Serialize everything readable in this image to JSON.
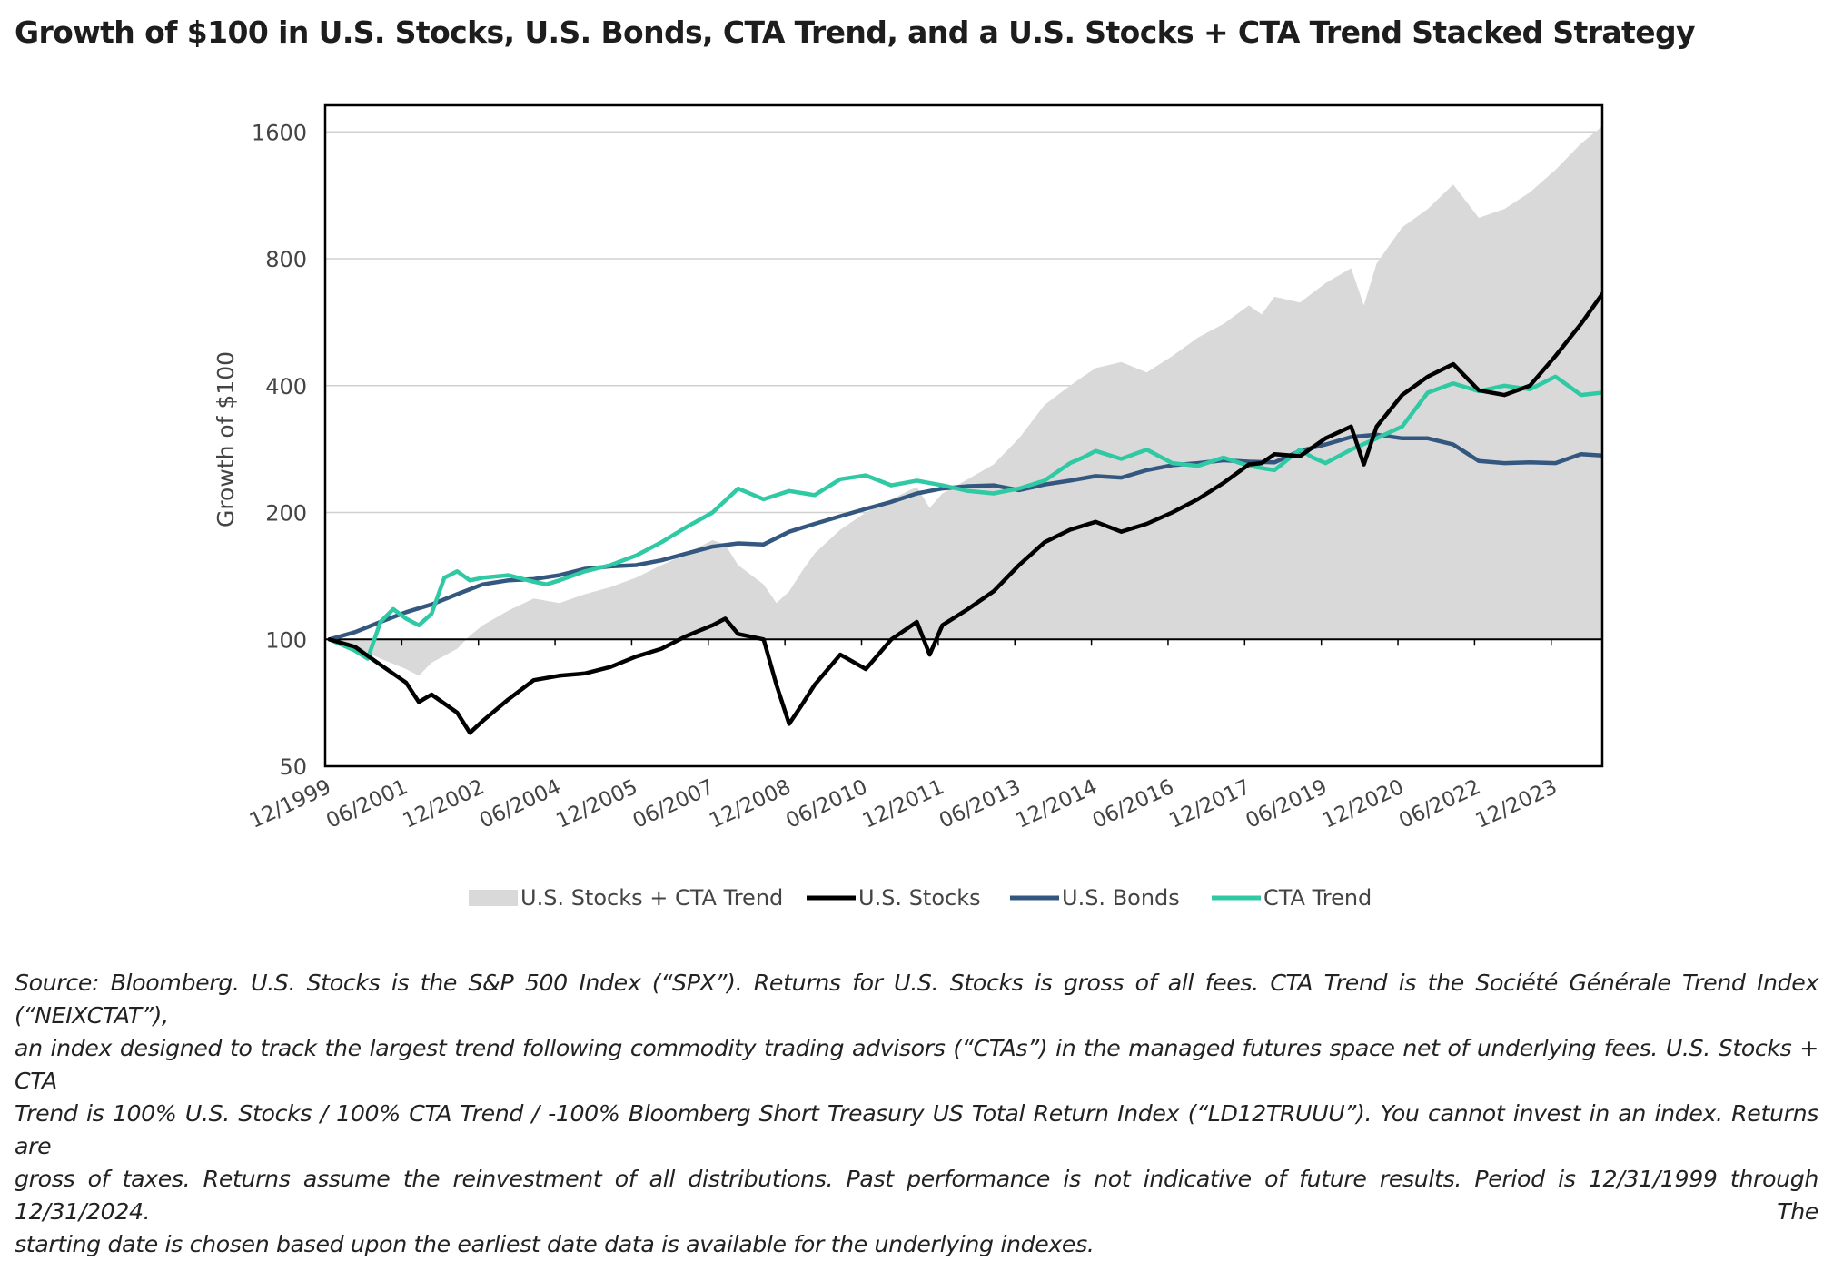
{
  "title": "Growth of $100 in U.S. Stocks, U.S. Bonds, CTA Trend, and a U.S. Stocks + CTA Trend Stacked Strategy",
  "source_lines": [
    "Source: Bloomberg.  U.S. Stocks is the S&P 500 Index (“SPX”). Returns for U.S. Stocks is gross of all fees. CTA Trend is the Société Générale Trend Index (“NEIXCTAT”),",
    "an index designed to track the largest trend following commodity trading advisors (“CTAs”) in the managed futures space net of underlying fees. U.S. Stocks + CTA",
    "Trend is 100% U.S. Stocks / 100% CTA Trend / -100% Bloomberg Short Treasury US Total Return Index (“LD12TRUUU”). You cannot invest in an index.  Returns are",
    "gross of taxes.  Returns assume the reinvestment of all distributions.  Past performance is not indicative of future results. Period is 12/31/1999 through 12/31/2024. The",
    "starting date is chosen based upon the earliest date data is available for the underlying indexes."
  ],
  "chart_data": {
    "type": "line",
    "title": "Growth of $100 in U.S. Stocks, U.S. Bonds, CTA Trend, and a U.S. Stocks + CTA Trend Stacked Strategy",
    "xlabel": "",
    "ylabel": "Growth of $100",
    "yscale": "log",
    "ylim": [
      50,
      1850
    ],
    "xlim": [
      1999.917,
      2024.917
    ],
    "grid": "horizontal",
    "legend_position": "bottom",
    "x_tick_labels": [
      "12/1999",
      "06/2001",
      "12/2002",
      "06/2004",
      "12/2005",
      "06/2007",
      "12/2008",
      "06/2010",
      "12/2011",
      "06/2013",
      "12/2014",
      "06/2016",
      "12/2017",
      "06/2019",
      "12/2020",
      "06/2022",
      "12/2023"
    ],
    "x_tick_values": [
      1999.917,
      2001.417,
      2002.917,
      2004.417,
      2005.917,
      2007.417,
      2008.917,
      2010.417,
      2011.917,
      2013.417,
      2014.917,
      2016.417,
      2017.917,
      2019.417,
      2020.917,
      2022.417,
      2023.917
    ],
    "y_ticks": [
      50,
      100,
      200,
      400,
      800,
      1600
    ],
    "y_tick_labels": [
      "50",
      "100",
      "200",
      "400",
      "800",
      "1600"
    ],
    "colors": {
      "stacked": "#d9d9d9",
      "stocks": "#000000",
      "bonds": "#33577f",
      "cta": "#2fc9a4"
    },
    "series": [
      {
        "name": "U.S. Stocks + CTA Trend",
        "kind": "area",
        "color": "#d9d9d9",
        "x": [
          2000.0,
          2000.5,
          2001.0,
          2001.5,
          2001.75,
          2002.0,
          2002.5,
          2002.75,
          2003.0,
          2003.5,
          2004.0,
          2004.5,
          2005.0,
          2005.5,
          2006.0,
          2006.5,
          2007.0,
          2007.5,
          2007.75,
          2008.0,
          2008.5,
          2008.75,
          2009.0,
          2009.25,
          2009.5,
          2010.0,
          2010.5,
          2011.0,
          2011.5,
          2011.75,
          2012.0,
          2012.5,
          2013.0,
          2013.5,
          2014.0,
          2014.5,
          2014.75,
          2015.0,
          2015.5,
          2016.0,
          2016.5,
          2017.0,
          2017.5,
          2018.0,
          2018.25,
          2018.5,
          2019.0,
          2019.5,
          2020.0,
          2020.25,
          2020.5,
          2021.0,
          2021.5,
          2022.0,
          2022.5,
          2023.0,
          2023.5,
          2024.0,
          2024.5,
          2024.917
        ],
        "values": [
          100,
          96,
          90,
          85,
          82,
          88,
          95,
          102,
          108,
          117,
          125,
          122,
          128,
          133,
          140,
          150,
          160,
          172,
          168,
          150,
          135,
          122,
          130,
          145,
          160,
          182,
          200,
          215,
          230,
          205,
          222,
          240,
          260,
          300,
          360,
          400,
          420,
          440,
          455,
          430,
          470,
          520,
          560,
          620,
          590,
          650,
          630,
          700,
          760,
          620,
          780,
          950,
          1050,
          1200,
          1000,
          1050,
          1150,
          1300,
          1500,
          1650
        ]
      },
      {
        "name": "U.S. Stocks",
        "kind": "line",
        "color": "#000000",
        "x": [
          2000.0,
          2000.5,
          2001.0,
          2001.5,
          2001.75,
          2002.0,
          2002.5,
          2002.75,
          2003.0,
          2003.5,
          2004.0,
          2004.5,
          2005.0,
          2005.5,
          2006.0,
          2006.5,
          2007.0,
          2007.5,
          2007.75,
          2008.0,
          2008.5,
          2008.75,
          2009.0,
          2009.25,
          2009.5,
          2010.0,
          2010.5,
          2011.0,
          2011.5,
          2011.75,
          2012.0,
          2012.5,
          2013.0,
          2013.5,
          2014.0,
          2014.5,
          2014.75,
          2015.0,
          2015.5,
          2016.0,
          2016.5,
          2017.0,
          2017.5,
          2018.0,
          2018.25,
          2018.5,
          2019.0,
          2019.5,
          2020.0,
          2020.25,
          2020.5,
          2021.0,
          2021.5,
          2022.0,
          2022.5,
          2023.0,
          2023.5,
          2024.0,
          2024.5,
          2024.917
        ],
        "values": [
          100,
          96,
          87,
          79,
          71,
          74,
          67,
          60,
          64,
          72,
          80,
          82,
          83,
          86,
          91,
          95,
          102,
          108,
          112,
          103,
          100,
          78,
          63,
          70,
          78,
          92,
          85,
          100,
          110,
          92,
          108,
          118,
          130,
          150,
          170,
          182,
          186,
          190,
          180,
          188,
          200,
          215,
          235,
          260,
          262,
          275,
          272,
          300,
          320,
          260,
          320,
          380,
          420,
          450,
          390,
          380,
          400,
          470,
          560,
          660
        ]
      },
      {
        "name": "U.S. Bonds",
        "kind": "line",
        "color": "#33577f",
        "x": [
          2000.0,
          2000.5,
          2001.0,
          2001.5,
          2002.0,
          2002.5,
          2003.0,
          2003.5,
          2004.0,
          2004.5,
          2005.0,
          2005.5,
          2006.0,
          2006.5,
          2007.0,
          2007.5,
          2008.0,
          2008.5,
          2009.0,
          2009.5,
          2010.0,
          2010.5,
          2011.0,
          2011.5,
          2012.0,
          2012.5,
          2013.0,
          2013.5,
          2014.0,
          2014.5,
          2015.0,
          2015.5,
          2016.0,
          2016.5,
          2017.0,
          2017.5,
          2018.0,
          2018.5,
          2019.0,
          2019.5,
          2020.0,
          2020.5,
          2021.0,
          2021.5,
          2022.0,
          2022.5,
          2023.0,
          2023.5,
          2024.0,
          2024.5,
          2024.917
        ],
        "values": [
          100,
          104,
          110,
          116,
          121,
          128,
          135,
          138,
          139,
          142,
          147,
          149,
          150,
          154,
          160,
          166,
          169,
          168,
          180,
          188,
          196,
          204,
          212,
          222,
          228,
          231,
          232,
          226,
          233,
          238,
          244,
          242,
          252,
          259,
          262,
          266,
          264,
          263,
          280,
          290,
          302,
          306,
          300,
          300,
          290,
          265,
          262,
          263,
          262,
          275,
          273
        ]
      },
      {
        "name": "CTA Trend",
        "kind": "line",
        "color": "#2fc9a4",
        "x": [
          2000.0,
          2000.25,
          2000.5,
          2000.75,
          2001.0,
          2001.25,
          2001.5,
          2001.75,
          2002.0,
          2002.25,
          2002.5,
          2002.75,
          2003.0,
          2003.5,
          2004.0,
          2004.25,
          2004.5,
          2005.0,
          2005.5,
          2006.0,
          2006.5,
          2007.0,
          2007.5,
          2008.0,
          2008.5,
          2009.0,
          2009.5,
          2010.0,
          2010.5,
          2011.0,
          2011.5,
          2012.0,
          2012.5,
          2013.0,
          2013.5,
          2014.0,
          2014.5,
          2014.75,
          2015.0,
          2015.5,
          2016.0,
          2016.5,
          2017.0,
          2017.5,
          2018.0,
          2018.5,
          2019.0,
          2019.25,
          2019.5,
          2020.0,
          2020.5,
          2021.0,
          2021.5,
          2022.0,
          2022.5,
          2023.0,
          2023.5,
          2024.0,
          2024.25,
          2024.5,
          2024.917
        ],
        "values": [
          100,
          97,
          94,
          90,
          110,
          118,
          112,
          108,
          115,
          140,
          145,
          138,
          140,
          142,
          137,
          135,
          138,
          145,
          150,
          158,
          170,
          185,
          200,
          228,
          215,
          225,
          220,
          240,
          245,
          232,
          238,
          232,
          225,
          222,
          228,
          238,
          262,
          270,
          280,
          268,
          282,
          262,
          258,
          270,
          258,
          252,
          282,
          270,
          262,
          282,
          300,
          320,
          385,
          405,
          388,
          400,
          392,
          420,
          400,
          380,
          385
        ]
      }
    ]
  }
}
